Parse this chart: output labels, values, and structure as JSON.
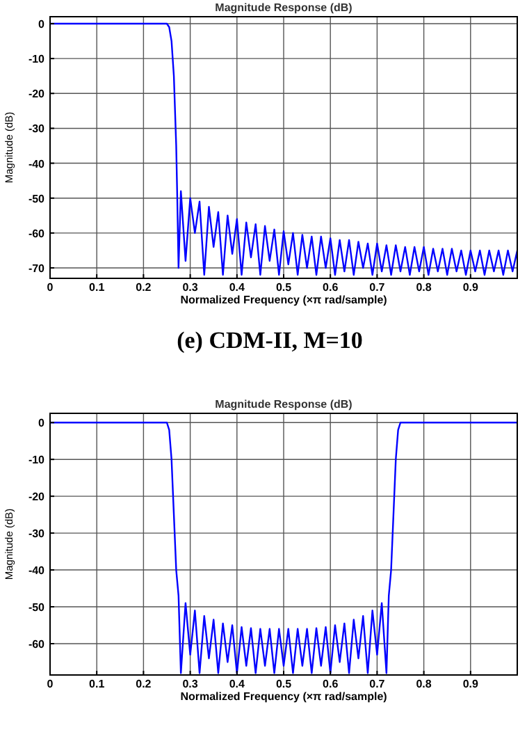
{
  "chart_data": [
    {
      "type": "line",
      "title": "Magnitude Response (dB)",
      "xlabel": "Normalized Frequency (×π rad/sample)",
      "ylabel": "Magnitude (dB)",
      "annotations": [
        "(e) CDM-II, M=10"
      ],
      "xlim": [
        0,
        1
      ],
      "ylim": [
        -73,
        2
      ],
      "xticks": [
        0,
        0.1,
        0.2,
        0.3,
        0.4,
        0.5,
        0.6,
        0.7,
        0.8,
        0.9
      ],
      "yticks": [
        0,
        -10,
        -20,
        -30,
        -40,
        -50,
        -60,
        -70
      ],
      "grid": true,
      "series": [
        {
          "color": "#0000ff",
          "x": [
            0,
            0.05,
            0.1,
            0.15,
            0.2,
            0.25,
            0.255,
            0.26,
            0.265,
            0.27,
            0.272,
            0.275,
            0.28,
            0.29,
            0.3,
            0.31,
            0.32,
            0.33,
            0.34,
            0.35,
            0.36,
            0.37,
            0.38,
            0.39,
            0.4,
            0.41,
            0.42,
            0.43,
            0.44,
            0.45,
            0.46,
            0.47,
            0.48,
            0.49,
            0.5,
            0.51,
            0.52,
            0.53,
            0.54,
            0.55,
            0.56,
            0.57,
            0.58,
            0.59,
            0.6,
            0.61,
            0.62,
            0.63,
            0.64,
            0.65,
            0.66,
            0.67,
            0.68,
            0.69,
            0.7,
            0.71,
            0.72,
            0.73,
            0.74,
            0.75,
            0.76,
            0.77,
            0.78,
            0.79,
            0.8,
            0.81,
            0.82,
            0.83,
            0.84,
            0.85,
            0.86,
            0.87,
            0.88,
            0.89,
            0.9,
            0.91,
            0.92,
            0.93,
            0.94,
            0.95,
            0.96,
            0.97,
            0.98,
            0.99,
            1
          ],
          "values": [
            0,
            0,
            0,
            0,
            0,
            0,
            -1,
            -5,
            -15,
            -35,
            -48,
            -70,
            -48,
            -68,
            -50,
            -60,
            -51,
            -72,
            -52.5,
            -64,
            -54,
            -72,
            -55,
            -66,
            -56,
            -72,
            -57,
            -67,
            -57.5,
            -72,
            -58,
            -68,
            -59,
            -72,
            -59.5,
            -69,
            -60,
            -72,
            -60.5,
            -70,
            -61,
            -72,
            -61,
            -70,
            -61.5,
            -72,
            -62,
            -71,
            -62,
            -72,
            -62.5,
            -70,
            -63,
            -72,
            -63,
            -71,
            -63.5,
            -72,
            -63.5,
            -71,
            -64,
            -72,
            -64,
            -71,
            -64,
            -72,
            -64.5,
            -71,
            -64.5,
            -72,
            -64.5,
            -71,
            -65,
            -72,
            -65,
            -71,
            -65,
            -72,
            -65,
            -71,
            -65,
            -72,
            -65,
            -71,
            -65
          ]
        }
      ]
    },
    {
      "type": "line",
      "title": "Magnitude Response (dB)",
      "xlabel": "Normalized Frequency (×π rad/sample)",
      "ylabel": "Magnitude (dB)",
      "xlim": [
        0,
        1
      ],
      "ylim": [
        -68.5,
        2.5
      ],
      "xticks": [
        0,
        0.1,
        0.2,
        0.3,
        0.4,
        0.5,
        0.6,
        0.7,
        0.8,
        0.9
      ],
      "yticks": [
        0,
        -10,
        -20,
        -30,
        -40,
        -50,
        -60
      ],
      "grid": true,
      "series": [
        {
          "color": "#0000ff",
          "x": [
            0,
            0.05,
            0.1,
            0.15,
            0.2,
            0.25,
            0.255,
            0.26,
            0.265,
            0.27,
            0.275,
            0.28,
            0.29,
            0.3,
            0.31,
            0.32,
            0.33,
            0.34,
            0.35,
            0.36,
            0.37,
            0.38,
            0.39,
            0.4,
            0.41,
            0.42,
            0.43,
            0.44,
            0.45,
            0.46,
            0.47,
            0.48,
            0.49,
            0.5,
            0.51,
            0.52,
            0.53,
            0.54,
            0.55,
            0.56,
            0.57,
            0.58,
            0.59,
            0.6,
            0.61,
            0.62,
            0.63,
            0.64,
            0.65,
            0.66,
            0.67,
            0.68,
            0.69,
            0.7,
            0.71,
            0.72,
            0.725,
            0.73,
            0.735,
            0.74,
            0.745,
            0.75,
            0.8,
            0.85,
            0.9,
            0.95,
            1
          ],
          "values": [
            0,
            0,
            0,
            0,
            0,
            0,
            -2,
            -10,
            -25,
            -40,
            -47,
            -68,
            -49,
            -63,
            -51,
            -68,
            -52.5,
            -64,
            -53.5,
            -68,
            -54.5,
            -65,
            -55,
            -68,
            -55.5,
            -66,
            -55.8,
            -68,
            -56,
            -66,
            -56,
            -68,
            -56,
            -66,
            -56,
            -68,
            -56,
            -66,
            -56,
            -68,
            -55.8,
            -66,
            -55.5,
            -68,
            -55,
            -65,
            -54.5,
            -68,
            -53.5,
            -64,
            -52.5,
            -68,
            -51,
            -63,
            -49,
            -68,
            -47,
            -40,
            -25,
            -10,
            -2,
            0,
            0,
            0,
            0,
            0,
            0
          ]
        }
      ]
    }
  ]
}
